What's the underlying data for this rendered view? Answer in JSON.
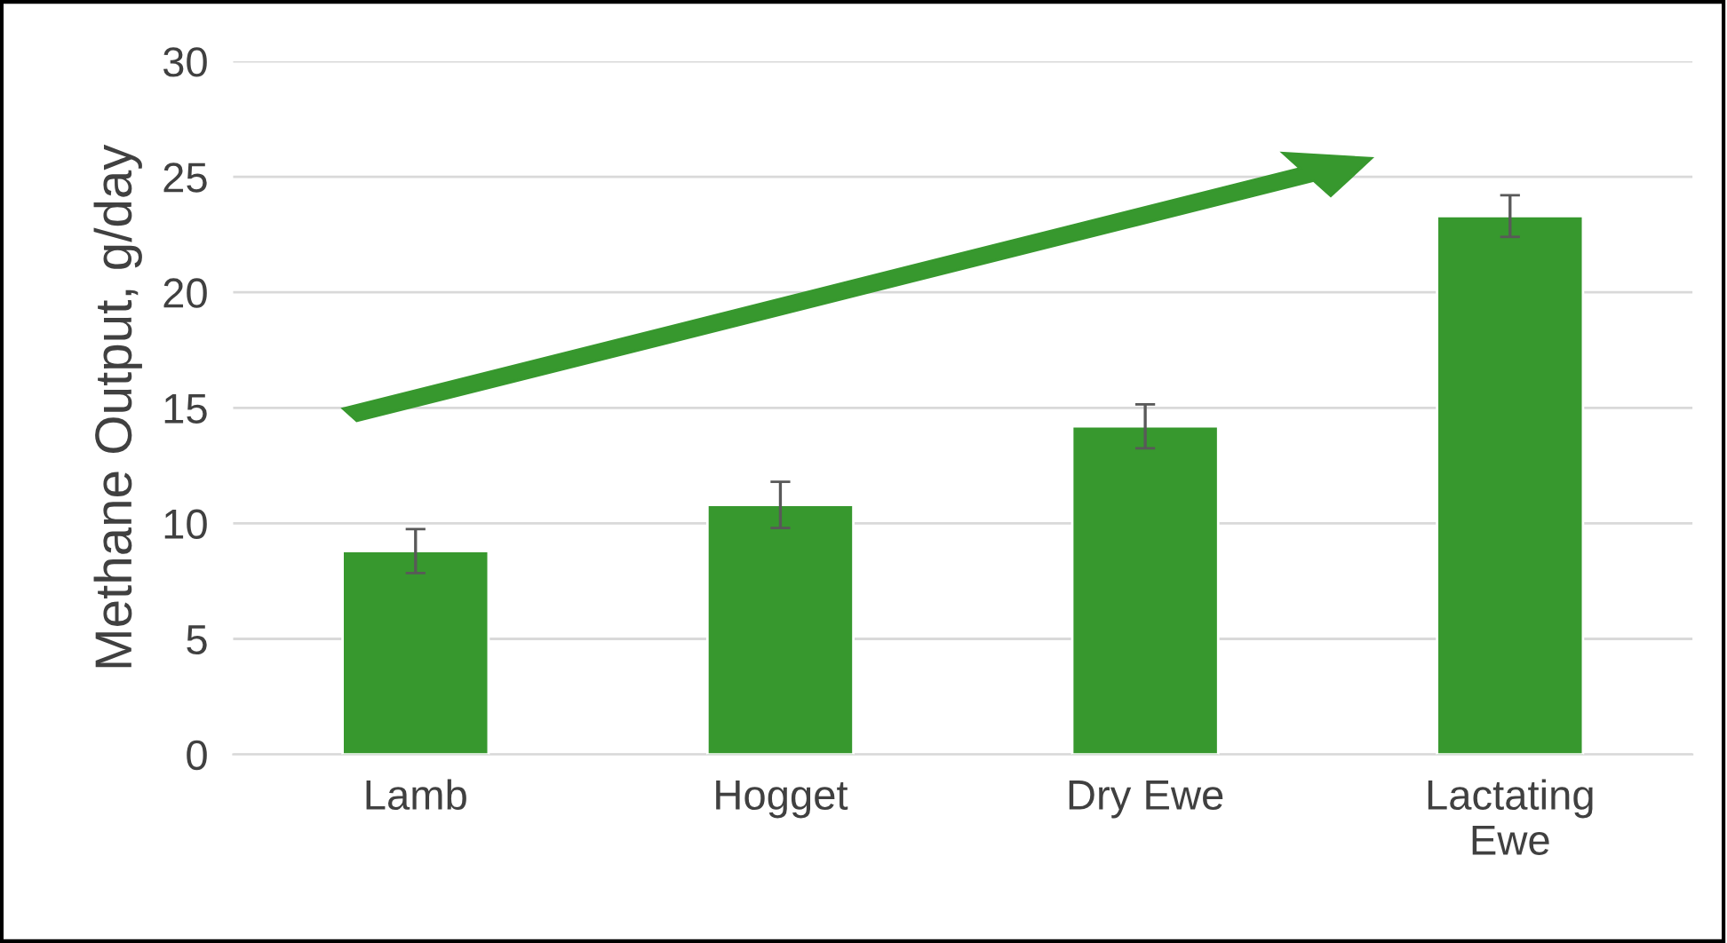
{
  "chart_data": {
    "type": "bar",
    "ylabel": "Methane Output, g/day",
    "categories": [
      "Lamb",
      "Hogget",
      "Dry Ewe",
      "Lactating\nEwe"
    ],
    "values": [
      8.8,
      10.8,
      14.2,
      23.3
    ],
    "errors": [
      0.95,
      1.0,
      0.95,
      0.9
    ],
    "color": "#37982e",
    "ylim": [
      0,
      30
    ],
    "yticks": [
      0,
      5,
      10,
      15,
      20,
      25,
      30
    ],
    "grid": "y"
  }
}
